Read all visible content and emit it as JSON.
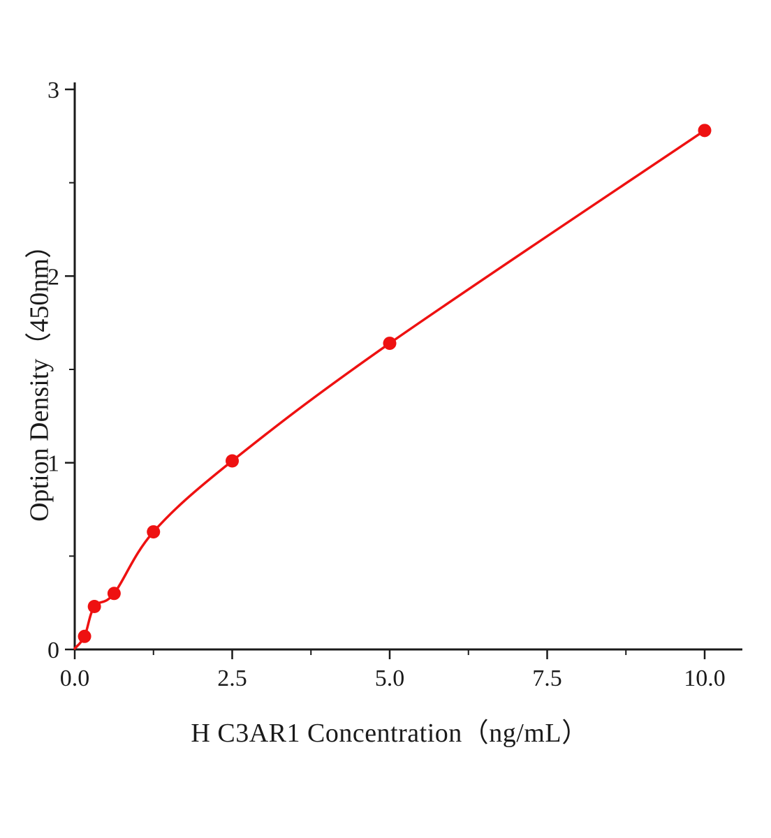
{
  "page": {
    "background": "#ffffff"
  },
  "chart_data": {
    "type": "scatter",
    "title": "",
    "xlabel": "H C3AR1 Concentration（ng/mL）",
    "ylabel": "Option Density（450nm）",
    "x": [
      0.156,
      0.312,
      0.625,
      1.25,
      2.5,
      5.0,
      10.0
    ],
    "y": [
      0.07,
      0.23,
      0.3,
      0.63,
      1.01,
      1.64,
      2.78
    ],
    "curve_start": {
      "x": 0.0,
      "y": 0.005
    },
    "x_ticks": [
      {
        "value": 0.0,
        "label": "0.0"
      },
      {
        "value": 2.5,
        "label": "2.5"
      },
      {
        "value": 5.0,
        "label": "5.0"
      },
      {
        "value": 7.5,
        "label": "7.5"
      },
      {
        "value": 10.0,
        "label": "10.0"
      }
    ],
    "y_ticks": [
      {
        "value": 0,
        "label": "0"
      },
      {
        "value": 1,
        "label": "1"
      },
      {
        "value": 2,
        "label": "2"
      },
      {
        "value": 3,
        "label": "3"
      }
    ],
    "x_minor_ticks": [
      1.25,
      3.75,
      6.25,
      8.75
    ],
    "y_minor_ticks": [
      0.5,
      1.5,
      2.5
    ],
    "xlim": [
      0,
      10.6
    ],
    "ylim": [
      0,
      3.05
    ],
    "grid": false,
    "legend_position": "none",
    "accent_color": "#ee1111",
    "axis_color": "#1a1a1a"
  }
}
